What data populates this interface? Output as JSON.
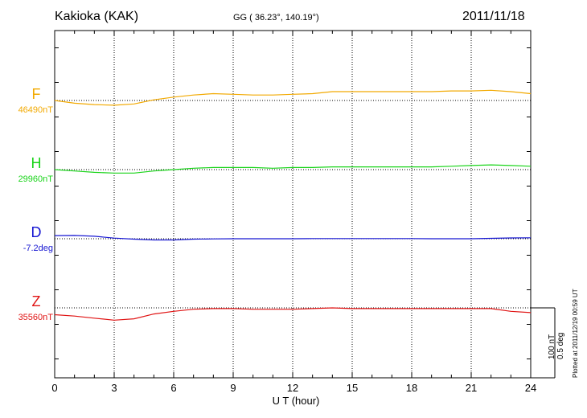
{
  "header": {
    "station": "Kakioka (KAK)",
    "coordinates": "GG ( 36.23°, 140.19°)",
    "date": "2011/11/18"
  },
  "footer": {
    "plotted": "Plotted at 2011/12/19 00:59 UT",
    "scale_nt": "100 nT",
    "scale_deg": "0.5 deg"
  },
  "chart_data": {
    "type": "line",
    "title": "Kakioka (KAK)",
    "xlabel": "U T (hour)",
    "ylabel": "",
    "xlim": [
      0,
      24
    ],
    "x_ticks": [
      "0",
      "3",
      "6",
      "9",
      "12",
      "15",
      "18",
      "21",
      "24"
    ],
    "grid": true,
    "x": [
      0,
      1,
      2,
      3,
      4,
      5,
      6,
      7,
      8,
      9,
      10,
      11,
      12,
      13,
      14,
      15,
      16,
      17,
      18,
      19,
      20,
      21,
      22,
      23,
      24
    ],
    "series": [
      {
        "name": "F",
        "base_label": "46490nT",
        "color": "#f2a900",
        "unit": "nT",
        "values": [
          46490,
          46486,
          46484,
          46483,
          46485,
          46491,
          46495,
          46498,
          46500,
          46499,
          46498,
          46498,
          46499,
          46500,
          46503,
          46503,
          46503,
          46503,
          46503,
          46503,
          46504,
          46504,
          46505,
          46503,
          46500
        ]
      },
      {
        "name": "H",
        "base_label": "29960nT",
        "color": "#19d419",
        "unit": "nT",
        "values": [
          29960,
          29958,
          29956,
          29955,
          29955,
          29958,
          29960,
          29962,
          29963,
          29963,
          29963,
          29962,
          29963,
          29963,
          29964,
          29964,
          29964,
          29964,
          29964,
          29964,
          29965,
          29966,
          29967,
          29966,
          29965
        ]
      },
      {
        "name": "D",
        "base_label": "-7.2deg",
        "color": "#1616d2",
        "unit": "deg",
        "values": [
          -7.177,
          -7.176,
          -7.182,
          -7.195,
          -7.203,
          -7.209,
          -7.209,
          -7.203,
          -7.201,
          -7.2,
          -7.2,
          -7.2,
          -7.2,
          -7.199,
          -7.199,
          -7.199,
          -7.199,
          -7.199,
          -7.199,
          -7.2,
          -7.2,
          -7.2,
          -7.197,
          -7.194,
          -7.193
        ]
      },
      {
        "name": "Z",
        "base_label": "35560nT",
        "color": "#e01414",
        "unit": "nT",
        "values": [
          35550,
          35548,
          35545,
          35542,
          35544,
          35551,
          35555,
          35558,
          35559,
          35559,
          35558,
          35558,
          35558,
          35559,
          35560,
          35559,
          35559,
          35559,
          35559,
          35559,
          35559,
          35559,
          35559,
          35555,
          35553
        ]
      }
    ]
  }
}
